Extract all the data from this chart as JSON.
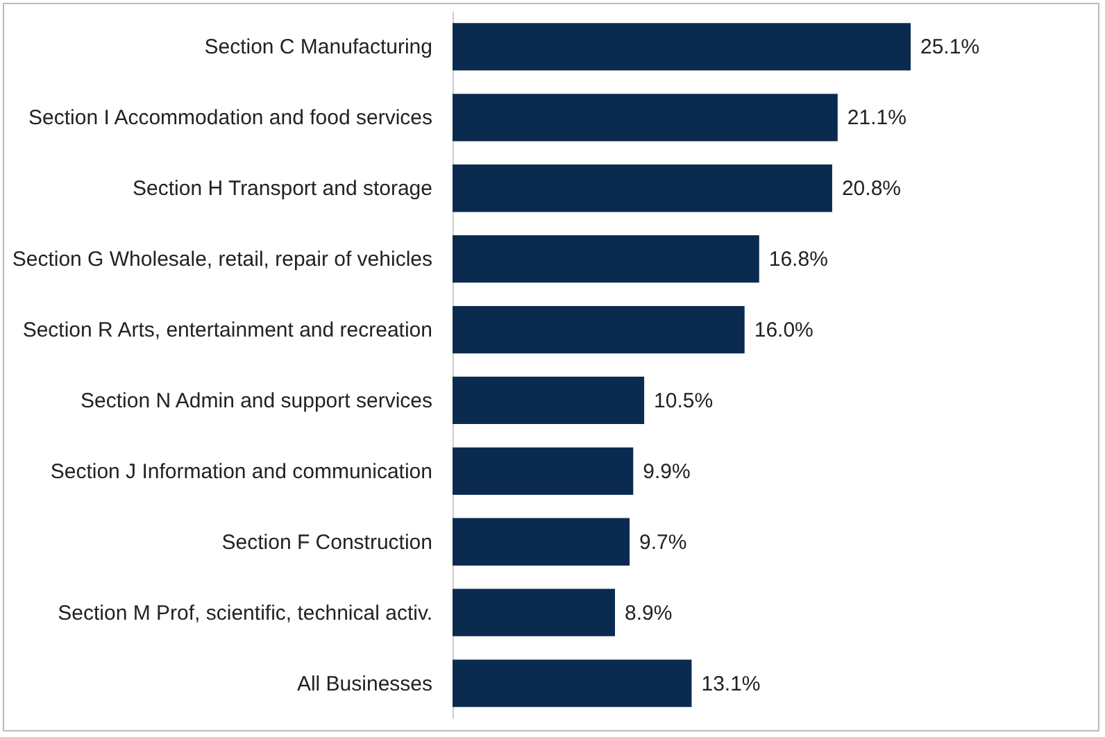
{
  "chart_data": {
    "type": "bar",
    "orientation": "horizontal",
    "categories": [
      "Section C Manufacturing",
      "Section I Accommodation and food services",
      "Section H Transport and storage",
      "Section G Wholesale, retail, repair of vehicles",
      "Section R Arts, entertainment and recreation",
      "Section N Admin and support services",
      "Section J Information and communication",
      "Section F Construction",
      "Section M Prof, scientific, technical activ.",
      "All Businesses"
    ],
    "values": [
      25.1,
      21.1,
      20.8,
      16.8,
      16.0,
      10.5,
      9.9,
      9.7,
      8.9,
      13.1
    ],
    "value_labels": [
      "25.1%",
      "21.1%",
      "20.8%",
      "16.8%",
      "16.0%",
      "10.5%",
      "9.9%",
      "9.7%",
      "8.9%",
      "13.1%"
    ],
    "color": "#0b2a4f"
  }
}
